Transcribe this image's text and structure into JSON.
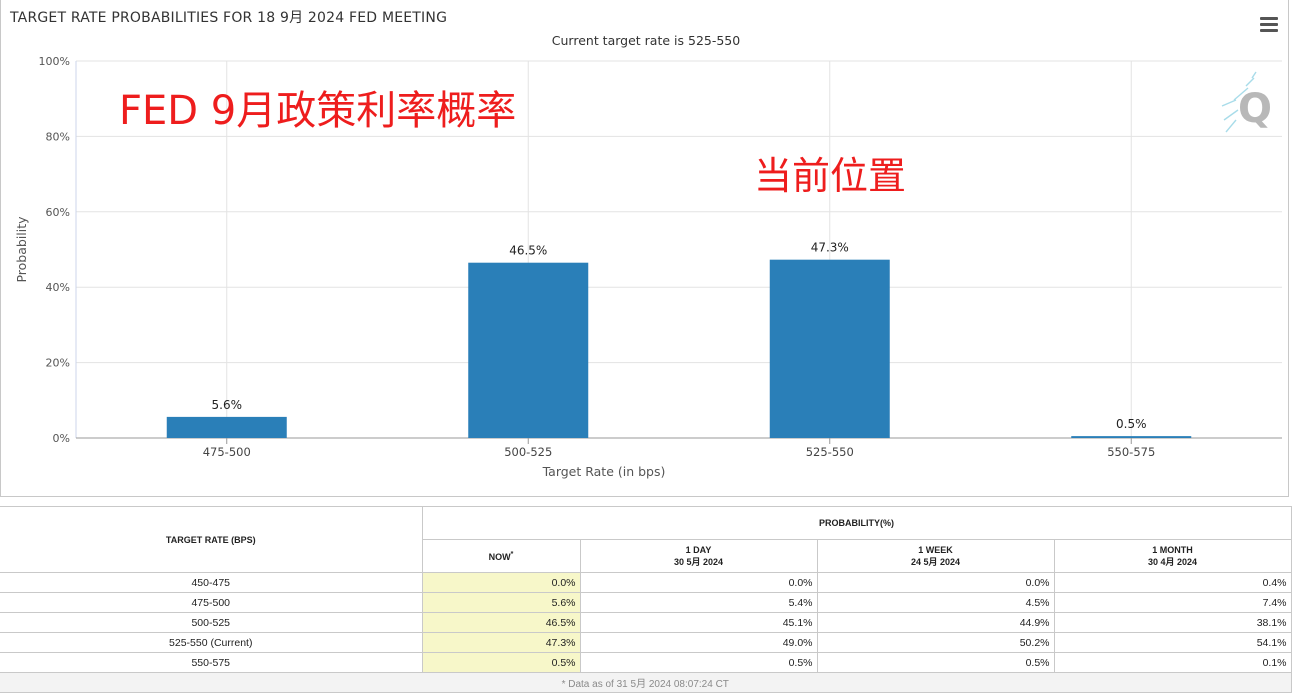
{
  "chart_title": "TARGET RATE PROBABILITIES FOR 18 9月 2024 FED MEETING",
  "chart_subtitle": "Current target rate is 525-550",
  "overlay": {
    "title": "FED 9月政策利率概率",
    "current_position": "当前位置",
    "logo_letter": "Q"
  },
  "colors": {
    "bar": "#2a7fb8",
    "annotation": "#ee1d1d",
    "now_column": "#f7f7c9"
  },
  "icons": {
    "menu": "hamburger-menu-icon",
    "logo": "quikstrike-q-logo"
  },
  "chart_data": {
    "type": "bar",
    "title": "TARGET RATE PROBABILITIES FOR 18 9月 2024 FED MEETING",
    "subtitle": "Current target rate is 525-550",
    "categories": [
      "475-500",
      "500-525",
      "525-550",
      "550-575"
    ],
    "values": [
      5.6,
      46.5,
      47.3,
      0.5
    ],
    "data_labels": [
      "5.6%",
      "46.5%",
      "47.3%",
      "0.5%"
    ],
    "xlabel": "Target Rate (in bps)",
    "ylabel": "Probability",
    "ylim": [
      0,
      100
    ],
    "y_ticks": [
      "0%",
      "20%",
      "40%",
      "60%",
      "80%",
      "100%"
    ],
    "grid": true
  },
  "table": {
    "col_rate_header": "TARGET RATE (BPS)",
    "probability_header": "PROBABILITY(%)",
    "now_header": "NOW",
    "now_marker": "*",
    "columns": [
      {
        "label": "1 DAY",
        "date": "30 5月 2024"
      },
      {
        "label": "1 WEEK",
        "date": "24 5月 2024"
      },
      {
        "label": "1 MONTH",
        "date": "30 4月 2024"
      }
    ],
    "rows": [
      {
        "rate": "450-475",
        "now": "0.0%",
        "day": "0.0%",
        "week": "0.0%",
        "month": "0.4%"
      },
      {
        "rate": "475-500",
        "now": "5.6%",
        "day": "5.4%",
        "week": "4.5%",
        "month": "7.4%"
      },
      {
        "rate": "500-525",
        "now": "46.5%",
        "day": "45.1%",
        "week": "44.9%",
        "month": "38.1%"
      },
      {
        "rate": "525-550 (Current)",
        "now": "47.3%",
        "day": "49.0%",
        "week": "50.2%",
        "month": "54.1%"
      },
      {
        "rate": "550-575",
        "now": "0.5%",
        "day": "0.5%",
        "week": "0.5%",
        "month": "0.1%"
      }
    ],
    "footer": "* Data as of 31 5月 2024 08:07:24 CT"
  }
}
